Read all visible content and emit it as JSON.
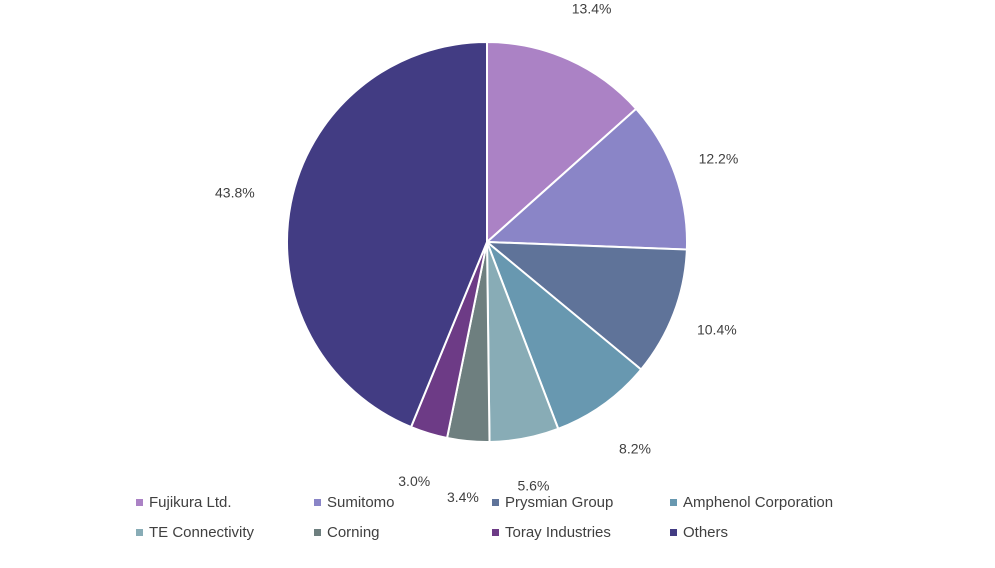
{
  "chart_data": {
    "type": "pie",
    "title": "",
    "labels": [
      "Fujikura Ltd.",
      "Sumitomo",
      "Prysmian Group",
      "Amphenol Corporation",
      "TE Connectivity",
      "Corning",
      "Toray Industries",
      "Others"
    ],
    "values": [
      13.4,
      12.2,
      10.4,
      8.2,
      5.6,
      3.4,
      3.0,
      43.8
    ],
    "value_labels": [
      "13.4%",
      "12.2%",
      "10.4%",
      "8.2%",
      "5.6%",
      "3.4%",
      "3.0%",
      "43.8%"
    ],
    "colors": [
      "#ab82c5",
      "#8a85c7",
      "#5f7399",
      "#6898b0",
      "#88acb6",
      "#6e7f7f",
      "#6d3b86",
      "#423c83"
    ],
    "start_angle_deg": 0,
    "direction": "clockwise",
    "legend_position": "bottom"
  }
}
